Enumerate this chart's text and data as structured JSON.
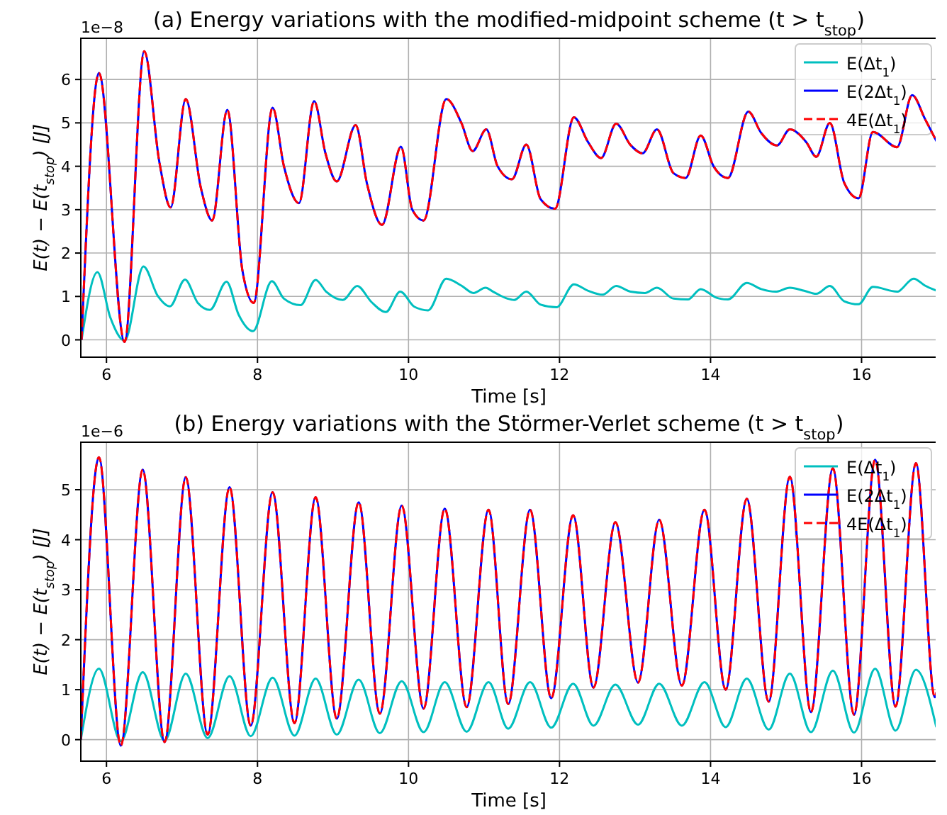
{
  "chart_data": [
    {
      "type": "line",
      "title": "(a) Energy variations with the modified-midpoint scheme (t > t$_{stop}$)",
      "xlabel": "Time [s]",
      "ylabel": "E(t) − E(t$_{stop}$) [J]",
      "annotations": [
        "1e−8"
      ],
      "xlim": [
        5.66,
        17
      ],
      "ylim": [
        -0.4,
        6.95
      ],
      "xticks": [
        6,
        8,
        10,
        12,
        14,
        16
      ],
      "yticks": [
        0,
        1,
        2,
        3,
        4,
        5,
        6
      ],
      "grid": true,
      "legend": "top right",
      "series": [
        {
          "name": "E(Δt$_{1}$)",
          "color": "#00bfbf",
          "line_style": "solid",
          "x": [
            5.67,
            5.88,
            6.05,
            6.24,
            6.49,
            6.68,
            6.84,
            7.04,
            7.21,
            7.37,
            7.59,
            7.75,
            7.94,
            8.19,
            8.35,
            8.57,
            8.77,
            8.91,
            9.13,
            9.32,
            9.51,
            9.7,
            9.89,
            10.08,
            10.26,
            10.5,
            10.7,
            10.86,
            11.02,
            11.12,
            11.31,
            11.4,
            11.56,
            11.75,
            11.96,
            12.19,
            12.38,
            12.57,
            12.75,
            12.94,
            13.13,
            13.29,
            13.51,
            13.7,
            13.87,
            14.08,
            14.23,
            14.48,
            14.67,
            14.86,
            15.05,
            15.24,
            15.4,
            15.58,
            15.77,
            15.96,
            16.15,
            16.47,
            16.69,
            16.84,
            17.0
          ],
          "values": [
            0,
            1.56,
            0.52,
            -0.02,
            1.69,
            1.01,
            0.77,
            1.39,
            0.85,
            0.69,
            1.34,
            0.58,
            0.2,
            1.35,
            0.95,
            0.8,
            1.38,
            1.11,
            0.92,
            1.24,
            0.87,
            0.64,
            1.11,
            0.76,
            0.68,
            1.41,
            1.25,
            1.08,
            1.2,
            1.11,
            0.95,
            0.92,
            1.11,
            0.81,
            0.75,
            1.28,
            1.13,
            1.04,
            1.24,
            1.11,
            1.08,
            1.2,
            0.95,
            0.93,
            1.17,
            0.97,
            0.93,
            1.31,
            1.17,
            1.11,
            1.2,
            1.13,
            1.06,
            1.24,
            0.89,
            0.82,
            1.22,
            1.11,
            1.41,
            1.25,
            1.13
          ]
        },
        {
          "name": "E(2Δt$_{1}$)",
          "color": "#0000ff",
          "line_style": "solid",
          "x": [
            5.67,
            5.9,
            6.24,
            6.5,
            6.7,
            6.85,
            7.05,
            7.25,
            7.4,
            7.6,
            7.8,
            7.95,
            8.2,
            8.35,
            8.55,
            8.75,
            8.9,
            9.05,
            9.3,
            9.45,
            9.65,
            9.9,
            10.05,
            10.2,
            10.5,
            10.7,
            10.85,
            11.03,
            11.18,
            11.37,
            11.56,
            11.75,
            11.94,
            12.19,
            12.38,
            12.55,
            12.75,
            12.94,
            13.1,
            13.29,
            13.51,
            13.67,
            13.87,
            14.04,
            14.23,
            14.5,
            14.67,
            14.88,
            15.05,
            15.27,
            15.4,
            15.58,
            15.77,
            15.96,
            16.15,
            16.47,
            16.67,
            16.84,
            17.0
          ],
          "values": [
            0,
            6.15,
            -0.05,
            6.65,
            4.1,
            3.05,
            5.55,
            3.5,
            2.75,
            5.3,
            1.6,
            0.85,
            5.35,
            4.0,
            3.15,
            5.5,
            4.3,
            3.65,
            4.95,
            3.6,
            2.65,
            4.45,
            3.0,
            2.75,
            5.55,
            5.0,
            4.35,
            4.85,
            4.0,
            3.7,
            4.5,
            3.24,
            3.02,
            5.13,
            4.55,
            4.19,
            4.98,
            4.49,
            4.3,
            4.85,
            3.84,
            3.73,
            4.71,
            4.0,
            3.73,
            5.26,
            4.77,
            4.48,
            4.85,
            4.55,
            4.22,
            5.0,
            3.62,
            3.26,
            4.79,
            4.44,
            5.64,
            5.09,
            4.55
          ]
        },
        {
          "name": "4E(Δt$_{1}$)",
          "color": "#ff0000",
          "line_style": "dashed",
          "x": [
            5.67,
            5.9,
            6.24,
            6.5,
            6.7,
            6.85,
            7.05,
            7.25,
            7.4,
            7.6,
            7.8,
            7.95,
            8.2,
            8.35,
            8.55,
            8.75,
            8.9,
            9.05,
            9.3,
            9.45,
            9.65,
            9.9,
            10.05,
            10.2,
            10.5,
            10.7,
            10.85,
            11.03,
            11.18,
            11.37,
            11.56,
            11.75,
            11.94,
            12.19,
            12.38,
            12.55,
            12.75,
            12.94,
            13.1,
            13.29,
            13.51,
            13.67,
            13.87,
            14.04,
            14.23,
            14.5,
            14.67,
            14.88,
            15.05,
            15.27,
            15.4,
            15.58,
            15.77,
            15.96,
            16.15,
            16.47,
            16.67,
            16.84,
            17.0
          ],
          "values": [
            0,
            6.15,
            -0.05,
            6.65,
            4.1,
            3.05,
            5.55,
            3.5,
            2.75,
            5.3,
            1.6,
            0.85,
            5.35,
            4.0,
            3.15,
            5.5,
            4.3,
            3.65,
            4.95,
            3.6,
            2.65,
            4.45,
            3.0,
            2.75,
            5.55,
            5.0,
            4.35,
            4.85,
            4.0,
            3.7,
            4.5,
            3.24,
            3.02,
            5.13,
            4.55,
            4.19,
            4.98,
            4.49,
            4.3,
            4.85,
            3.84,
            3.73,
            4.71,
            4.0,
            3.73,
            5.26,
            4.77,
            4.48,
            4.85,
            4.55,
            4.22,
            5.0,
            3.62,
            3.26,
            4.79,
            4.44,
            5.64,
            5.09,
            4.55
          ]
        }
      ]
    },
    {
      "type": "line",
      "title": "(b) Energy variations with the Störmer-Verlet scheme (t > t$_{stop}$)",
      "xlabel": "Time [s]",
      "ylabel": "E(t) − E(t$_{stop}$) [J]",
      "annotations": [
        "1e−6"
      ],
      "xlim": [
        5.66,
        17
      ],
      "ylim": [
        -0.43,
        5.95
      ],
      "xticks": [
        6,
        8,
        10,
        12,
        14,
        16
      ],
      "yticks": [
        0,
        1,
        2,
        3,
        4,
        5
      ],
      "grid": true,
      "legend": "top right",
      "series": [
        {
          "name": "E(Δt$_{1}$)",
          "color": "#00bfbf",
          "line_style": "solid",
          "x": [
            5.66,
            5.9,
            6.19,
            6.48,
            6.77,
            7.05,
            7.34,
            7.63,
            7.91,
            8.2,
            8.49,
            8.77,
            9.05,
            9.34,
            9.62,
            9.91,
            10.2,
            10.48,
            10.77,
            11.06,
            11.32,
            11.61,
            11.89,
            12.18,
            12.45,
            12.74,
            13.04,
            13.32,
            13.62,
            13.92,
            14.2,
            14.48,
            14.77,
            15.05,
            15.33,
            15.62,
            15.9,
            16.18,
            16.45,
            16.72,
            16.99
          ],
          "values": [
            0,
            1.42,
            -0.03,
            1.35,
            -0.02,
            1.32,
            0.03,
            1.27,
            0.07,
            1.24,
            0.08,
            1.22,
            0.1,
            1.2,
            0.13,
            1.17,
            0.15,
            1.15,
            0.16,
            1.15,
            0.22,
            1.15,
            0.24,
            1.12,
            0.28,
            1.1,
            0.3,
            1.12,
            0.28,
            1.15,
            0.25,
            1.22,
            0.2,
            1.32,
            0.15,
            1.38,
            0.14,
            1.42,
            0.18,
            1.4,
            0.25
          ]
        },
        {
          "name": "E(2Δt$_{1}$)",
          "color": "#0000ff",
          "line_style": "solid",
          "x": [
            5.66,
            5.9,
            6.19,
            6.48,
            6.77,
            7.05,
            7.34,
            7.63,
            7.91,
            8.2,
            8.49,
            8.77,
            9.05,
            9.34,
            9.62,
            9.91,
            10.2,
            10.48,
            10.77,
            11.06,
            11.32,
            11.61,
            11.89,
            12.18,
            12.45,
            12.74,
            13.04,
            13.32,
            13.62,
            13.92,
            14.2,
            14.48,
            14.77,
            15.05,
            15.33,
            15.62,
            15.9,
            16.18,
            16.45,
            16.72,
            16.97,
            17.0
          ],
          "values": [
            0,
            5.65,
            -0.12,
            5.4,
            -0.05,
            5.25,
            0.1,
            5.05,
            0.28,
            4.95,
            0.33,
            4.85,
            0.42,
            4.75,
            0.52,
            4.68,
            0.62,
            4.62,
            0.65,
            4.6,
            0.71,
            4.6,
            0.83,
            4.49,
            1.04,
            4.35,
            1.14,
            4.4,
            1.08,
            4.6,
            1.0,
            4.82,
            0.76,
            5.26,
            0.55,
            5.43,
            0.5,
            5.6,
            0.66,
            5.53,
            0.85,
            1.0
          ]
        },
        {
          "name": "4E(Δt$_{1}$)",
          "color": "#ff0000",
          "line_style": "dashed",
          "x": [
            5.66,
            5.9,
            6.19,
            6.48,
            6.77,
            7.05,
            7.34,
            7.63,
            7.91,
            8.2,
            8.49,
            8.77,
            9.05,
            9.34,
            9.62,
            9.91,
            10.2,
            10.48,
            10.77,
            11.06,
            11.32,
            11.61,
            11.89,
            12.18,
            12.45,
            12.74,
            13.04,
            13.32,
            13.62,
            13.92,
            14.2,
            14.48,
            14.77,
            15.05,
            15.33,
            15.62,
            15.9,
            16.18,
            16.45,
            16.72,
            16.97,
            17.0
          ],
          "values": [
            0,
            5.65,
            -0.12,
            5.4,
            -0.05,
            5.25,
            0.1,
            5.05,
            0.28,
            4.95,
            0.33,
            4.85,
            0.42,
            4.75,
            0.52,
            4.68,
            0.62,
            4.62,
            0.65,
            4.6,
            0.71,
            4.6,
            0.83,
            4.49,
            1.04,
            4.35,
            1.14,
            4.4,
            1.08,
            4.6,
            1.0,
            4.82,
            0.76,
            5.26,
            0.55,
            5.43,
            0.5,
            5.6,
            0.66,
            5.53,
            0.85,
            1.0
          ]
        }
      ]
    }
  ]
}
